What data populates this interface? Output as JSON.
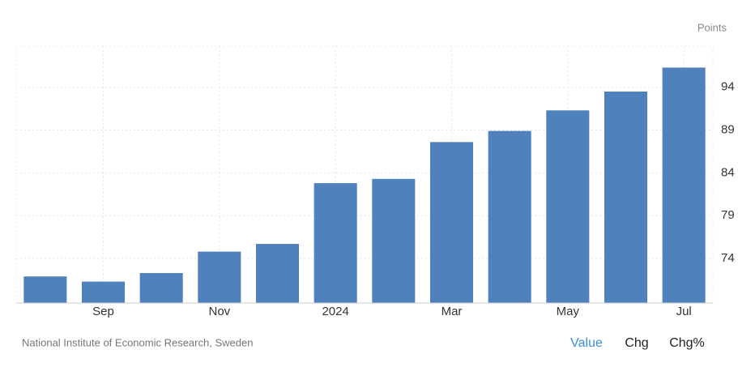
{
  "chart_data": {
    "type": "bar",
    "y_label": "Points",
    "categories": [
      null,
      "Sep",
      null,
      "Nov",
      null,
      "2024",
      null,
      "Mar",
      null,
      "May",
      null,
      "Jul"
    ],
    "values": [
      71.9,
      71.3,
      72.3,
      74.8,
      75.7,
      82.8,
      83.3,
      87.6,
      88.9,
      91.3,
      93.5,
      96.3
    ],
    "color": "#4f81bd",
    "ylim": [
      68.8,
      98.8
    ],
    "yticks": [
      74,
      79,
      84,
      89,
      94
    ],
    "grid": true
  },
  "source": "National Institute of Economic Research, Sweden",
  "tabs": [
    "Value",
    "Chg",
    "Chg%"
  ]
}
